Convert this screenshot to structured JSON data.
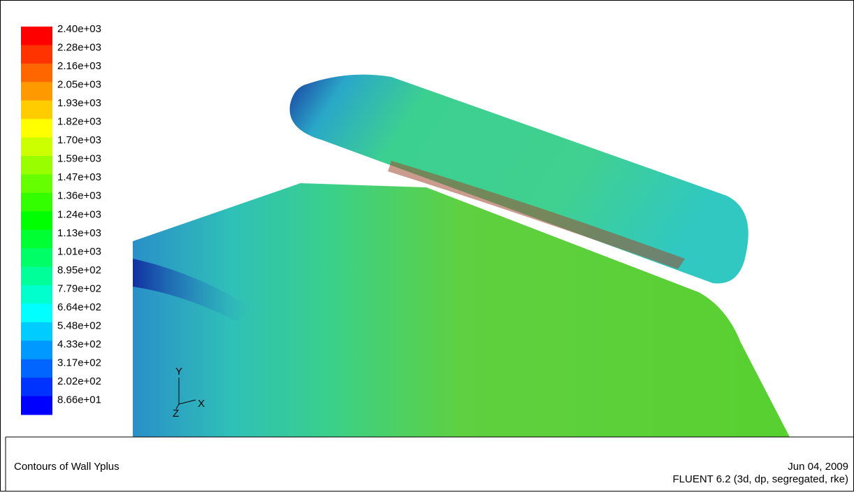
{
  "colorbar": {
    "labels": [
      "2.40e+03",
      "2.28e+03",
      "2.16e+03",
      "2.05e+03",
      "1.93e+03",
      "1.82e+03",
      "1.70e+03",
      "1.59e+03",
      "1.47e+03",
      "1.36e+03",
      "1.24e+03",
      "1.13e+03",
      "1.01e+03",
      "8.95e+02",
      "7.79e+02",
      "6.64e+02",
      "5.48e+02",
      "4.33e+02",
      "3.17e+02",
      "2.02e+02",
      "8.66e+01"
    ]
  },
  "axes": {
    "y": "Y",
    "z": "Z",
    "x": "X"
  },
  "footer": {
    "title": "Contours of Wall Yplus",
    "date": "Jun 04, 2009",
    "version": "FLUENT 6.2 (3d, dp, segregated, rke)"
  }
}
